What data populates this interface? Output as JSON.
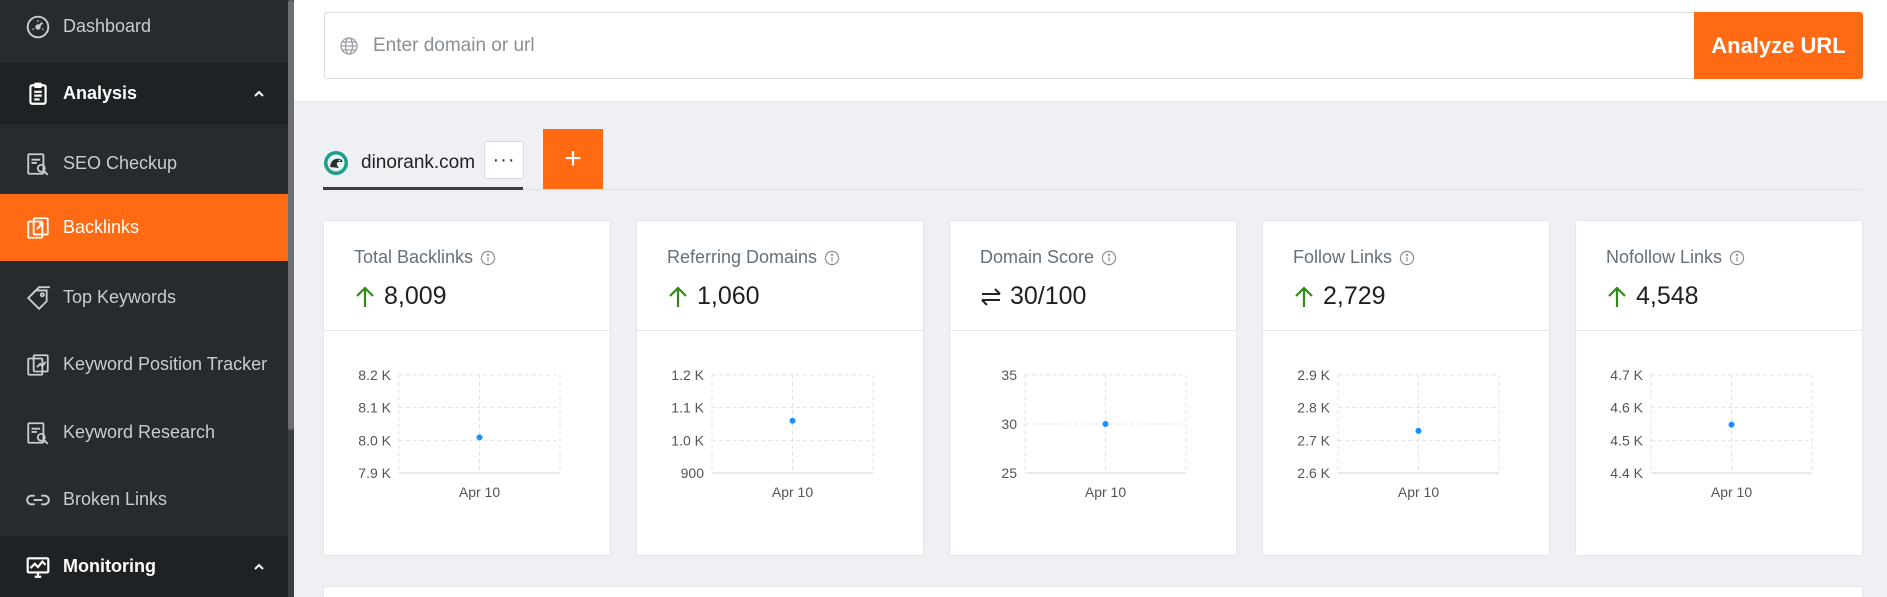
{
  "sidebar": {
    "items": [
      {
        "label": "Dashboard",
        "icon": "dashboard-gauge-icon",
        "type": "item"
      },
      {
        "label": "Analysis",
        "icon": "clipboard-icon",
        "type": "group",
        "expanded": true
      },
      {
        "label": "SEO Checkup",
        "icon": "seo-checkup-icon",
        "type": "item"
      },
      {
        "label": "Backlinks",
        "icon": "backlinks-icon",
        "type": "item",
        "active": true
      },
      {
        "label": "Top Keywords",
        "icon": "tag-icon",
        "type": "item"
      },
      {
        "label": "Keyword Position Tracker",
        "icon": "position-tracker-icon",
        "type": "item"
      },
      {
        "label": "Keyword Research",
        "icon": "keyword-research-icon",
        "type": "item"
      },
      {
        "label": "Broken Links",
        "icon": "broken-link-icon",
        "type": "item"
      },
      {
        "label": "Monitoring",
        "icon": "monitor-icon",
        "type": "group",
        "expanded": true
      }
    ]
  },
  "search": {
    "placeholder": "Enter domain or url",
    "value": "",
    "button_label": "Analyze URL"
  },
  "project": {
    "domain": "dinorank.com",
    "more_label": "···",
    "add_label": "+"
  },
  "colors": {
    "accent": "#ff6a13",
    "sidebar_bg": "#262b2d",
    "up_arrow": "#2f8a16",
    "chart_point": "#1890ff"
  },
  "cards": [
    {
      "title": "Total Backlinks",
      "value": "8,009",
      "trend": "up",
      "chart": {
        "y_ticks": [
          "8.2 K",
          "8.1 K",
          "8.0 K",
          "7.9 K"
        ],
        "ylim": [
          7900,
          8200
        ],
        "x_label": "Apr 10",
        "point": 8009
      }
    },
    {
      "title": "Referring Domains",
      "value": "1,060",
      "trend": "up",
      "chart": {
        "y_ticks": [
          "1.2 K",
          "1.1 K",
          "1.0 K",
          "900"
        ],
        "ylim": [
          900,
          1200
        ],
        "x_label": "Apr 10",
        "point": 1060
      }
    },
    {
      "title": "Domain Score",
      "value": "30/100",
      "trend": "equal",
      "chart": {
        "y_ticks": [
          "35",
          "30",
          "25"
        ],
        "ylim": [
          25,
          35
        ],
        "x_label": "Apr 10",
        "point": 30
      }
    },
    {
      "title": "Follow Links",
      "value": "2,729",
      "trend": "up",
      "chart": {
        "y_ticks": [
          "2.9 K",
          "2.8 K",
          "2.7 K",
          "2.6 K"
        ],
        "ylim": [
          2600,
          2900
        ],
        "x_label": "Apr 10",
        "point": 2729
      }
    },
    {
      "title": "Nofollow Links",
      "value": "4,548",
      "trend": "up",
      "chart": {
        "y_ticks": [
          "4.7 K",
          "4.6 K",
          "4.5 K",
          "4.4 K"
        ],
        "ylim": [
          4400,
          4700
        ],
        "x_label": "Apr 10",
        "point": 4548
      }
    }
  ]
}
